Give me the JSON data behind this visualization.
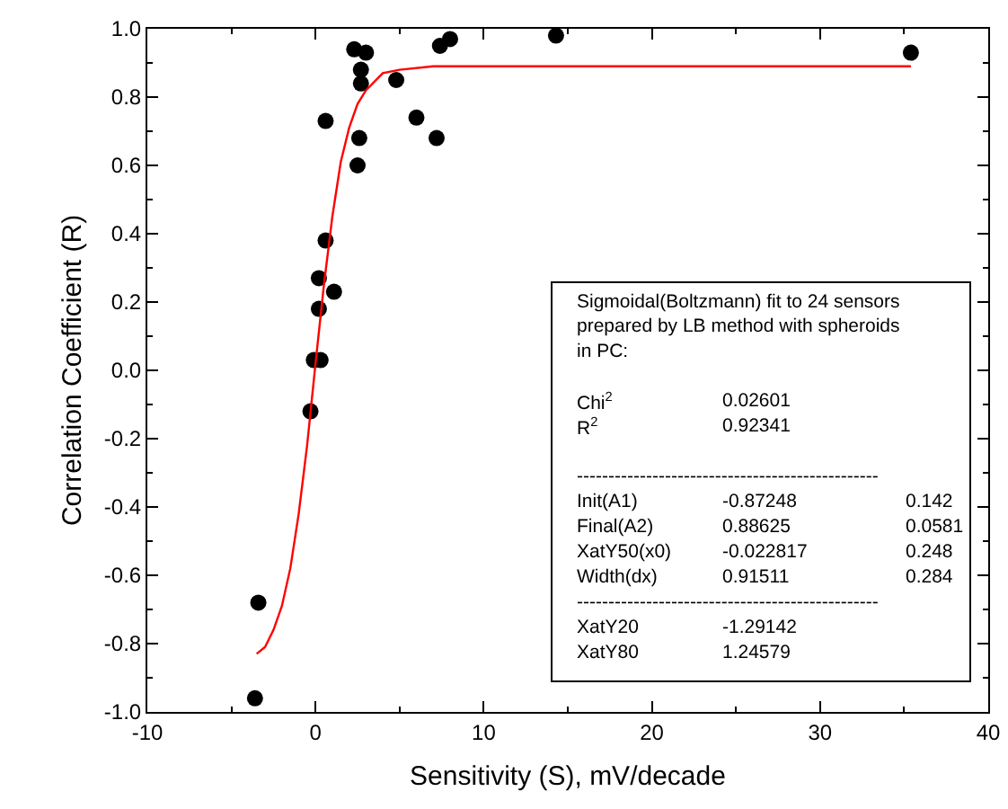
{
  "chart_data": {
    "type": "scatter",
    "xlabel": "Sensitivity (S), mV/decade",
    "ylabel": "Correlation Coefficient (R)",
    "xlim": [
      -10,
      40
    ],
    "xticks": [
      -10,
      0,
      10,
      20,
      30,
      40
    ],
    "ylim": [
      -1,
      1
    ],
    "yticks": [
      {
        "value": -1,
        "label": "-1.0"
      },
      -0.8,
      -0.6,
      -0.4,
      -0.2,
      {
        "value": 0,
        "label": "0.0"
      },
      0.2,
      0.4,
      0.6,
      0.8,
      {
        "value": 1,
        "label": "1.0"
      }
    ],
    "grid": false,
    "marker": "circle",
    "series": [
      {
        "color": "#000000",
        "x": [
          2.3,
          3.0,
          2.7,
          2.7,
          4.8,
          7.4,
          8.0,
          14.3,
          0.6,
          6.0,
          2.6,
          7.2,
          2.5,
          0.6,
          0.2,
          1.1,
          0.2,
          -0.1,
          0.3,
          -0.3,
          -3.4,
          -3.6,
          35.4
        ],
        "values": [
          0.94,
          0.93,
          0.88,
          0.84,
          0.85,
          0.95,
          0.97,
          0.98,
          0.73,
          0.74,
          0.68,
          0.68,
          0.6,
          0.38,
          0.27,
          0.23,
          0.18,
          0.03,
          0.03,
          -0.12,
          -0.68,
          -0.96,
          0.93
        ]
      },
      {
        "type": "line",
        "color": "#ff0000",
        "line_style": "solid",
        "marker": "none",
        "x": [
          -3.5,
          -3,
          -2.5,
          -2,
          -1.5,
          -1,
          -0.5,
          0,
          0.5,
          1,
          1.5,
          2,
          2.5,
          3,
          4,
          5,
          7,
          35.4
        ],
        "values": [
          -0.83,
          -0.81,
          -0.76,
          -0.69,
          -0.58,
          -0.42,
          -0.22,
          0.02,
          0.25,
          0.45,
          0.61,
          0.71,
          0.78,
          0.82,
          0.87,
          0.88,
          0.89,
          0.89
        ]
      }
    ],
    "annotations": [
      "Sigmoidal(Boltzmann) fit to 24 sensors\nprepared by LB method with spheroids\nin PC:",
      "Chi$^{2}$\t0.02601",
      "R$^{2}$\t0.92341",
      "------------------------------------------------",
      "Init(A1)\t-0.87248\t0.142",
      "Final(A2)\t0.88625\t0.0581",
      "XatY50(x0)\t-0.022817\t0.248",
      "Width(dx)\t0.91511\t0.284",
      "------------------------------------------------",
      "XatY20\t-1.29142",
      "XatY80\t1.24579"
    ]
  }
}
